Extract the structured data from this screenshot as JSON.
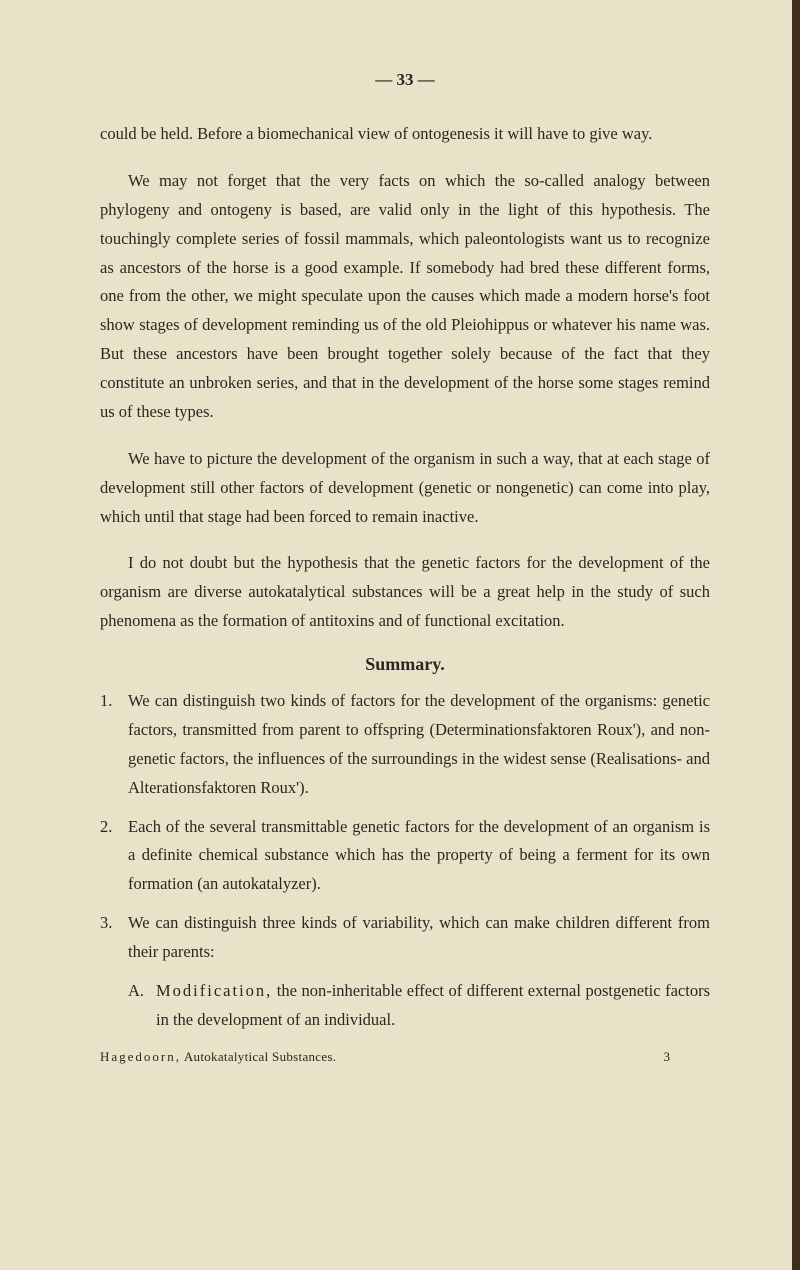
{
  "page_number": "—   33   —",
  "paragraphs": {
    "p1": "could be held. Before a biomechanical view of ontogenesis it will have to give way.",
    "p2": "We may not forget that the very facts on which the so-called analogy between phylogeny and ontogeny is based, are valid only in the light of this hypothesis. The touchingly complete series of fossil mammals, which paleontologists want us to recognize as ancestors of the horse is a good example. If somebody had bred these different forms, one from the other, we might speculate upon the causes which made a modern horse's foot show stages of development reminding us of the old Pleiohippus or whatever his name was. But these ancestors have been brought together solely because of the fact that they constitute an unbroken series, and that in the development of the horse some stages remind us of these types.",
    "p3": "We have to picture the development of the organism in such a way, that at each stage of development still other factors of development (genetic or nongenetic) can come into play, which until that stage had been forced to remain inactive.",
    "p4": "I do not doubt but the hypothesis that the genetic factors for the development of the organism are diverse autokatalytical substances will be a great help in the study of such phenomena as the formation of antitoxins and of functional excitation."
  },
  "summary_heading": "Summary.",
  "summary_items": {
    "item1_num": "1.",
    "item1": "We can distinguish two kinds of factors for the development of the organisms: genetic factors, transmitted from parent to offspring (Determinationsfaktoren Roux'), and non-genetic factors, the influences of the surroundings in the widest sense (Realisations- and Alterationsfaktoren Roux').",
    "item2_num": "2.",
    "item2": "Each of the several transmittable genetic factors for the development of an organism is a definite chemical substance which has the property of being a ferment for its own formation (an autokatalyzer).",
    "item3_num": "3.",
    "item3": "We can distinguish three kinds of variability, which can make children different from their parents:",
    "subA_letter": "A.",
    "subA_label": "Modification,",
    "subA_text": " the non-inheritable effect of different external postgenetic factors in the development of an individual."
  },
  "footer": {
    "author": "Hagedoorn,",
    "title": " Autokatalytical Substances.",
    "page_ref": "3"
  },
  "colors": {
    "background": "#e8e3c8",
    "text": "#2a2620",
    "edge": "#3d2f1a"
  }
}
